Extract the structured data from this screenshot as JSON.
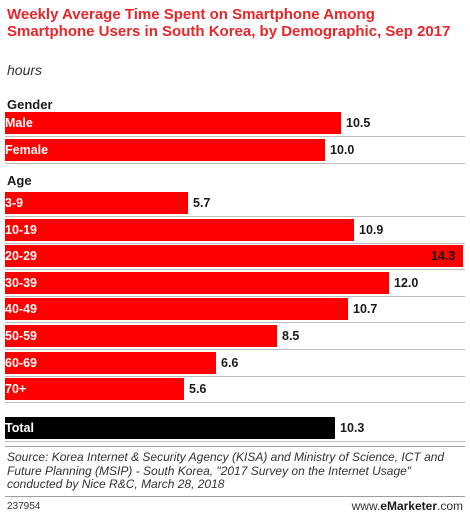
{
  "chart_data": {
    "type": "bar",
    "orientation": "horizontal",
    "title": "Weekly Average Time Spent on Smartphone Among Smartphone Users in South Korea, by Demographic, Sep 2017",
    "subtitle": "hours",
    "groups": [
      {
        "name": "Gender",
        "categories": [
          "Male",
          "Female"
        ],
        "values": [
          10.5,
          10.0
        ]
      },
      {
        "name": "Age",
        "categories": [
          "3-9",
          "10-19",
          "20-29",
          "30-39",
          "40-49",
          "50-59",
          "60-69",
          "70+"
        ],
        "values": [
          5.7,
          10.9,
          14.3,
          12.0,
          10.7,
          8.5,
          6.6,
          5.6
        ]
      },
      {
        "name": "",
        "categories": [
          "Total"
        ],
        "values": [
          10.3
        ]
      }
    ],
    "value_labels": [
      "10.5",
      "10.0",
      "5.7",
      "10.9",
      "14.3",
      "12.0",
      "10.7",
      "8.5",
      "6.6",
      "5.6",
      "10.3"
    ],
    "xlim": [
      0,
      14.3
    ],
    "colors": {
      "bar": "#ff0000",
      "total": "#000000",
      "title": "#e8262a"
    }
  },
  "source": "Source: Korea Internet & Security Agency (KISA) and Ministry of Science, ICT and Future Planning (MSIP) - South Korea, \"2017 Survey on the Internet Usage\" conducted by Nice R&C, March 28, 2018",
  "footnote": "237954",
  "brand": {
    "url_prefix": "www.",
    "name": "eMarketer",
    "suffix": ".com"
  }
}
